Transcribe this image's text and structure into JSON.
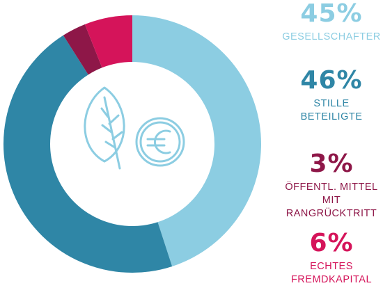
{
  "chart_data": {
    "type": "pie",
    "title": "",
    "donut": true,
    "categories": [
      "GESELLSCHAFTER",
      "STILLE BETEILIGTE",
      "ÖFFENTL. MITTEL MIT RANGRÜCKTRITT",
      "ECHTES FREMDKAPITAL"
    ],
    "values": [
      45,
      46,
      3,
      6
    ],
    "value_labels": [
      "45%",
      "46%",
      "3%",
      "6%"
    ],
    "label_lines": [
      [
        "GESELLSCHAFTER"
      ],
      [
        "STILLE",
        "BETEILIGTE"
      ],
      [
        "ÖFFENTL. MITTEL",
        "MIT RANGRÜCKTRITT"
      ],
      [
        "ECHTES",
        "FREMDKAPITAL"
      ]
    ],
    "colors": [
      "#8ccde2",
      "#2f86a6",
      "#8e1748",
      "#d5145a"
    ],
    "legend_placement": "right",
    "center_icon": "leaf-euro-icon"
  }
}
